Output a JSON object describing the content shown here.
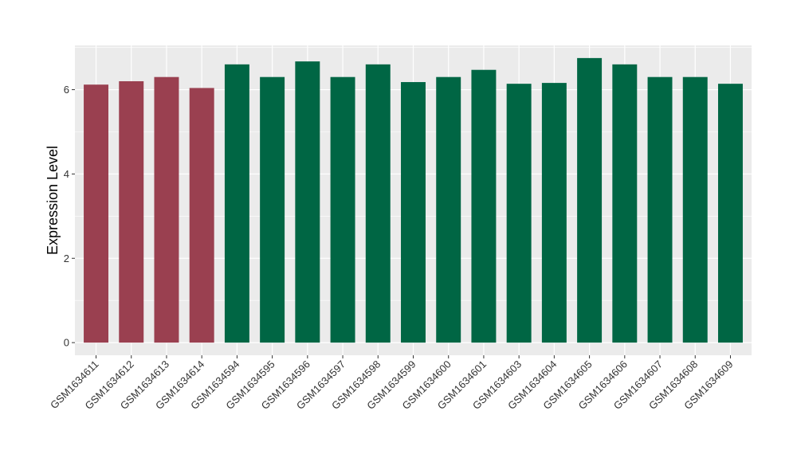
{
  "chart_data": {
    "type": "bar",
    "title": "",
    "xlabel": "",
    "ylabel": "Expression Level",
    "ylim": [
      -0.3,
      7.05
    ],
    "yticks": [
      0,
      2,
      4,
      6
    ],
    "grid": true,
    "categories": [
      "GSM1634611",
      "GSM1634612",
      "GSM1634613",
      "GSM1634614",
      "GSM1634594",
      "GSM1634595",
      "GSM1634596",
      "GSM1634597",
      "GSM1634598",
      "GSM1634599",
      "GSM1634600",
      "GSM1634601",
      "GSM1634603",
      "GSM1634604",
      "GSM1634605",
      "GSM1634606",
      "GSM1634607",
      "GSM1634608",
      "GSM1634609"
    ],
    "values": [
      6.12,
      6.2,
      6.3,
      6.04,
      6.6,
      6.3,
      6.67,
      6.3,
      6.6,
      6.18,
      6.3,
      6.47,
      6.14,
      6.16,
      6.75,
      6.6,
      6.3,
      6.3,
      6.14
    ],
    "groups": [
      0,
      0,
      0,
      0,
      1,
      1,
      1,
      1,
      1,
      1,
      1,
      1,
      1,
      1,
      1,
      1,
      1,
      1,
      1
    ],
    "group_colors": [
      "#9a4050",
      "#006644"
    ],
    "panel_background": "#ebebeb",
    "grid_color": "#ffffff"
  }
}
